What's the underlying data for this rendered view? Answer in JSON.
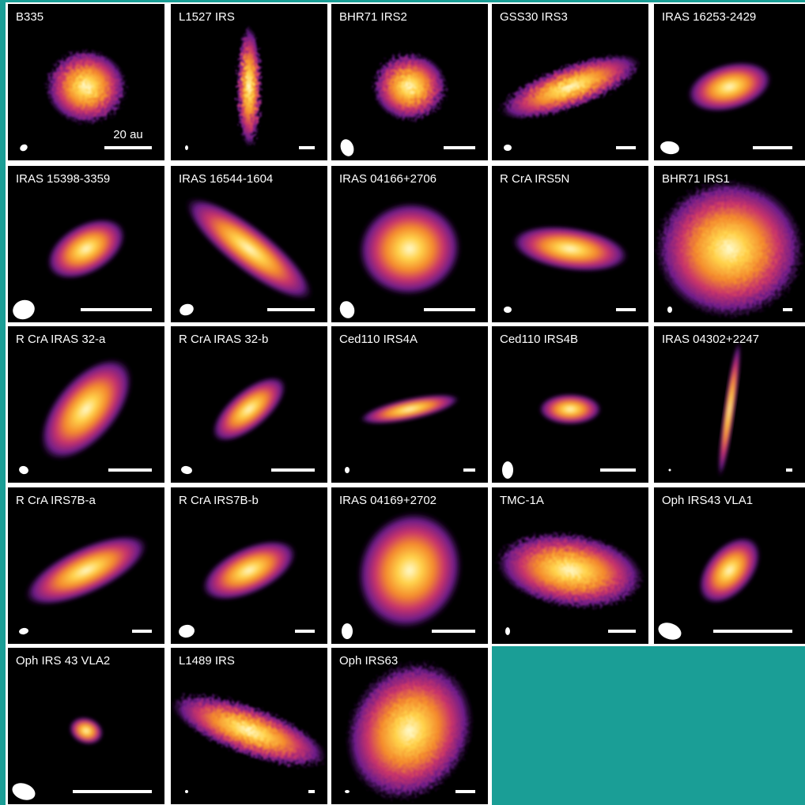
{
  "panels": [
    {
      "label": "B335",
      "scale_label": "20 au"
    },
    {
      "label": "L1527 IRS"
    },
    {
      "label": "BHR71 IRS2"
    },
    {
      "label": "GSS30 IRS3"
    },
    {
      "label": "IRAS 16253-2429"
    },
    {
      "label": "IRAS 15398-3359"
    },
    {
      "label": "IRAS 16544-1604"
    },
    {
      "label": "IRAS 04166+2706"
    },
    {
      "label": "R CrA IRS5N"
    },
    {
      "label": "BHR71 IRS1"
    },
    {
      "label": "R CrA IRAS 32-a"
    },
    {
      "label": "R CrA IRAS 32-b"
    },
    {
      "label": "Ced110 IRS4A"
    },
    {
      "label": "Ced110 IRS4B"
    },
    {
      "label": "IRAS 04302+2247"
    },
    {
      "label": "R CrA IRS7B-a"
    },
    {
      "label": "R CrA IRS7B-b"
    },
    {
      "label": "IRAS 04169+2702"
    },
    {
      "label": "TMC-1A"
    },
    {
      "label": "Oph IRS43 VLA1"
    },
    {
      "label": "Oph IRS 43 VLA2"
    },
    {
      "label": "L1489 IRS"
    },
    {
      "label": "Oph IRS63"
    }
  ]
}
